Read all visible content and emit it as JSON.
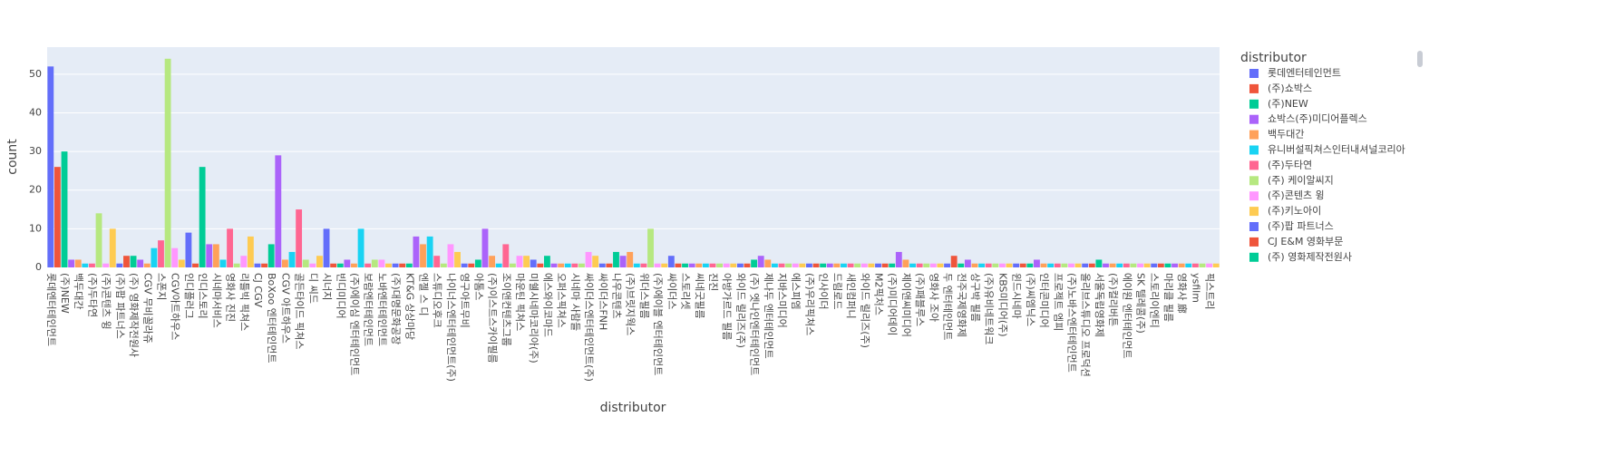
{
  "chart_data": {
    "type": "bar",
    "x_label": "distributor",
    "y_label": "count",
    "legend_title": "distributor",
    "ylim": [
      0,
      57
    ],
    "yticks": [
      0,
      10,
      20,
      30,
      40,
      50
    ],
    "grid": true,
    "legend_position": "right",
    "palette": [
      "#636efa",
      "#EF553B",
      "#00cc96",
      "#ab63fa",
      "#FFA15A",
      "#19d3f3",
      "#FF6692",
      "#B6E880",
      "#FF97FF",
      "#FECB52"
    ],
    "legend": [
      "롯데엔터테인먼트",
      "(주)쇼박스",
      "(주)NEW",
      "쇼박스(주)미디어플렉스",
      "백두대간",
      "유니버설픽쳐스인터내셔널코리아",
      "(주)두타연",
      "(주) 케이알씨지",
      "(주)콘텐츠 윙",
      "(주)키노아이",
      "(주)팝 파트너스",
      "CJ E&M 영화부문",
      "(주) 영화제작전원사"
    ],
    "categories": [
      "롯데엔터테인먼트",
      null,
      "(주)NEW",
      null,
      "백두대간",
      null,
      "(주)두타연",
      null,
      "(주)콘텐츠 윙",
      null,
      "(주)팝 파트너스",
      null,
      "(주) 영화제작전원사",
      null,
      "CGV 무비꼴라쥬",
      null,
      "스폰지",
      null,
      "CGV아트하우스",
      null,
      "인디플러그",
      null,
      "인디스토리",
      null,
      "시네마서비스",
      null,
      "영화사 진진",
      null,
      "리틀빅 픽쳐스",
      null,
      "CJ CGV",
      null,
      "BoXoo 엔터테인먼트",
      null,
      "CGV 아트하우스",
      null,
      "골든타이드 픽쳐스",
      null,
      "디 씨드",
      null,
      "시너지",
      null,
      "빈디미디어",
      null,
      "(주)에이심 엔터테인먼트",
      null,
      "보람엔터테인먼트",
      null,
      "노바엔터테인먼트",
      null,
      "(주)대명문화공장",
      null,
      "KT&G 상상마당",
      null,
      "엔젤 스 디",
      null,
      "스튜디오후크",
      null,
      "나이너스엔터테인먼트(주)",
      null,
      "영구아트무비",
      null,
      "아톰스",
      null,
      "(주)이스트스카이필름",
      null,
      "조이앤컨텐츠그룹",
      null,
      "마운틴 픽쳐스",
      null,
      "미쉘시네마코리아(주)",
      null,
      "에스와이코마드",
      null,
      "오퍼스픽쳐스",
      null,
      "시네마 사람들",
      null,
      "싸이더스엔터테인먼트(주)",
      null,
      "싸이더스FNH",
      null,
      "나우콘텐츠",
      null,
      "(주)브릿지웍스",
      null,
      "위더스필름",
      null,
      "(주)에이블 엔터테인먼트",
      null,
      "싸이더스",
      null,
      "스토리셋",
      null,
      "씨네굿필름",
      null,
      "진진",
      null,
      "아방가르드 필름",
      null,
      "와이드 릴리즈(주)",
      null,
      "(주) 엣나인엔터테인먼트",
      null,
      "제나두 엔터테인먼트",
      null,
      "지바스미디어",
      null,
      "에스피엠",
      null,
      "(주)우리픽쳐스",
      null,
      "인사이더",
      null,
      "드림로드",
      null,
      "새인컴퍼니",
      null,
      "와이드 릴리즈(주) ",
      null,
      "M2픽처스",
      null,
      "(주)미디어데이",
      null,
      "제이앤씨미디어",
      null,
      "(주)패블루스",
      null,
      "영화사 조아",
      null,
      "두 엔터테인먼트",
      null,
      "전주국제영화제",
      null,
      "상구박 필름",
      null,
      "(주)유비네트워크",
      null,
      "KBS미디어(주)",
      null,
      "윈드시네마",
      null,
      "(주)씨엠닉스",
      null,
      "인터콘미디어",
      null,
      "프로젝트 엠피",
      null,
      "(주)노바스엔터테인먼트",
      null,
      "올리브스튜디오 프로덕션",
      null,
      "서울독립영화제",
      null,
      "(주)컬리버튼",
      null,
      "에이원 엔터테인먼트",
      null,
      "SK 텔레콤(주)",
      null,
      "스토리이엔티",
      null,
      "마리클 필름",
      null,
      "영화사 廊",
      null,
      "ysfilm",
      null,
      "픽스트리",
      null
    ],
    "values": [
      52,
      26,
      30,
      2,
      2,
      1,
      1,
      14,
      1,
      10,
      1,
      3,
      3,
      2,
      1,
      5,
      7,
      54,
      5,
      2,
      9,
      1,
      26,
      6,
      6,
      2,
      10,
      1,
      3,
      8,
      1,
      1,
      6,
      29,
      2,
      4,
      15,
      2,
      1,
      3,
      10,
      1,
      1,
      2,
      1,
      10,
      1,
      2,
      2,
      1,
      1,
      1,
      1,
      8,
      6,
      8,
      3,
      1,
      6,
      4,
      1,
      1,
      2,
      10,
      3,
      1,
      6,
      1,
      3,
      3,
      2,
      1,
      3,
      1,
      1,
      1,
      1,
      1,
      4,
      3,
      1,
      1,
      4,
      3,
      4,
      1,
      1,
      10,
      1,
      1,
      3,
      1,
      1,
      1,
      1,
      1,
      1,
      1,
      1,
      1,
      1,
      1,
      2,
      3,
      2,
      1,
      1,
      1,
      1,
      1,
      1,
      1,
      1,
      1,
      1,
      1,
      1,
      1,
      1,
      1,
      1,
      1,
      1,
      4,
      2,
      1,
      1,
      1,
      1,
      1,
      1,
      3,
      1,
      2,
      1,
      1,
      1,
      1,
      1,
      1,
      1,
      1,
      1,
      2,
      1,
      1,
      1,
      1,
      1,
      1,
      1,
      1,
      2,
      1,
      1,
      1,
      1,
      1,
      1,
      1,
      1,
      1,
      1,
      1,
      1,
      1,
      1,
      1,
      1,
      1
    ]
  }
}
